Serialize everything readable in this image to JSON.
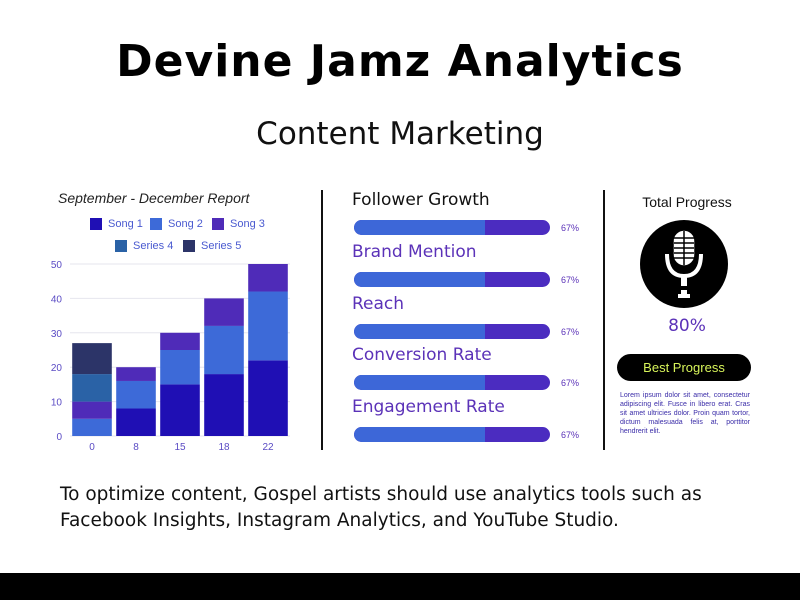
{
  "header": {
    "title": "Devine Jamz  Analytics",
    "subtitle": "Content Marketing"
  },
  "chart_data": {
    "type": "bar",
    "stacked": true,
    "title": "September - December  Report",
    "categories": [
      "0",
      "8",
      "15",
      "18",
      "22"
    ],
    "ylim": [
      0,
      50
    ],
    "yticks": [
      0,
      10,
      20,
      30,
      40,
      50
    ],
    "grid": true,
    "legend_position": "top",
    "series": [
      {
        "name": "Song 1",
        "color": "#1f0fb4",
        "values": [
          0,
          8,
          15,
          18,
          22
        ]
      },
      {
        "name": "Song 2",
        "color": "#3d6ad8",
        "values": [
          5,
          8,
          10,
          14,
          20
        ]
      },
      {
        "name": "Song 3",
        "color": "#4f2bb8",
        "values": [
          5,
          4,
          5,
          8,
          8
        ]
      },
      {
        "name": "Series 4",
        "color": "#2a62a6",
        "values": [
          8,
          0,
          0,
          0,
          0
        ]
      },
      {
        "name": "Series 5",
        "color": "#2c3468",
        "values": [
          9,
          0,
          0,
          0,
          0
        ]
      }
    ]
  },
  "metrics": [
    {
      "label": "Follower Growth",
      "value": 0.67,
      "pct_label": "67%"
    },
    {
      "label": "Brand Mention",
      "value": 0.67,
      "pct_label": "67%"
    },
    {
      "label": "Reach",
      "value": 0.67,
      "pct_label": "67%"
    },
    {
      "label": "Conversion Rate",
      "value": 0.67,
      "pct_label": "67%"
    },
    {
      "label": "Engagement Rate",
      "value": 0.67,
      "pct_label": "67%"
    }
  ],
  "progress": {
    "label": "Total Progress",
    "icon": "microphone-icon",
    "percent": "80%",
    "button_label": "Best Progress",
    "lorem": "Lorem ipsum dolor sit amet, consectetur adipiscing elit. Fusce in libero erat. Cras sit amet ultricies dolor. Proin quam tortor, dictum malesuada felis at, porttitor hendrerit elit."
  },
  "footer": {
    "text": "To optimize content, Gospel artists should use analytics tools such as Facebook Insights, Instagram Analytics, and YouTube Studio."
  },
  "colors": {
    "bar_track": "#4b2cc0",
    "bar_fill": "#3d67d8",
    "accent_text": "#5b32b8",
    "button_text": "#d8f55a"
  }
}
